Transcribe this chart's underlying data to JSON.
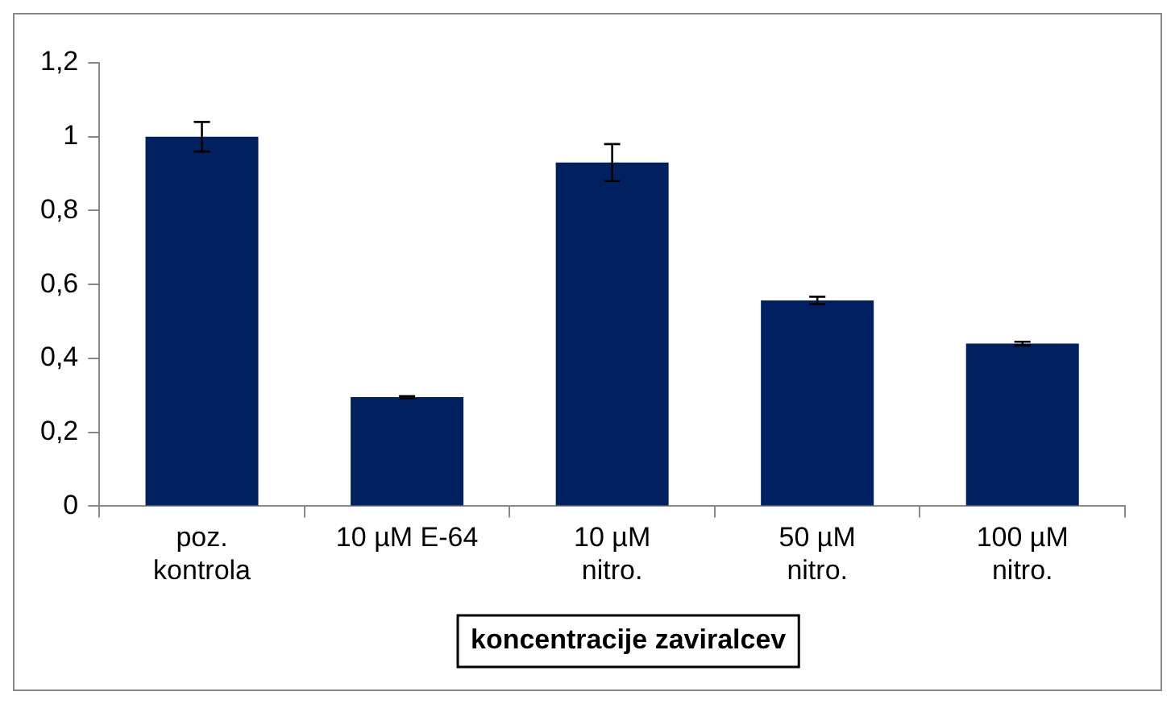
{
  "chart_data": {
    "type": "bar",
    "xlabel": "koncentracije zaviralcev",
    "categories": [
      "poz. kontrola",
      "10 µM E-64",
      "10 µM nitro.",
      "50 µM nitro.",
      "100 µM nitro."
    ],
    "values": [
      1.0,
      0.295,
      0.93,
      0.557,
      0.44
    ],
    "errors": [
      0.04,
      0.003,
      0.05,
      0.01,
      0.005
    ],
    "color": "#002060",
    "ylim": [
      0,
      1.2
    ],
    "yticks": [
      0,
      {
        "value": 0.2,
        "label": "0,2"
      },
      {
        "value": 0.4,
        "label": "0,4"
      },
      {
        "value": 0.6,
        "label": "0,6"
      },
      {
        "value": 0.8,
        "label": "0,8"
      },
      1,
      {
        "value": 1.2,
        "label": "1,2"
      }
    ],
    "grid": false,
    "legend": false
  }
}
